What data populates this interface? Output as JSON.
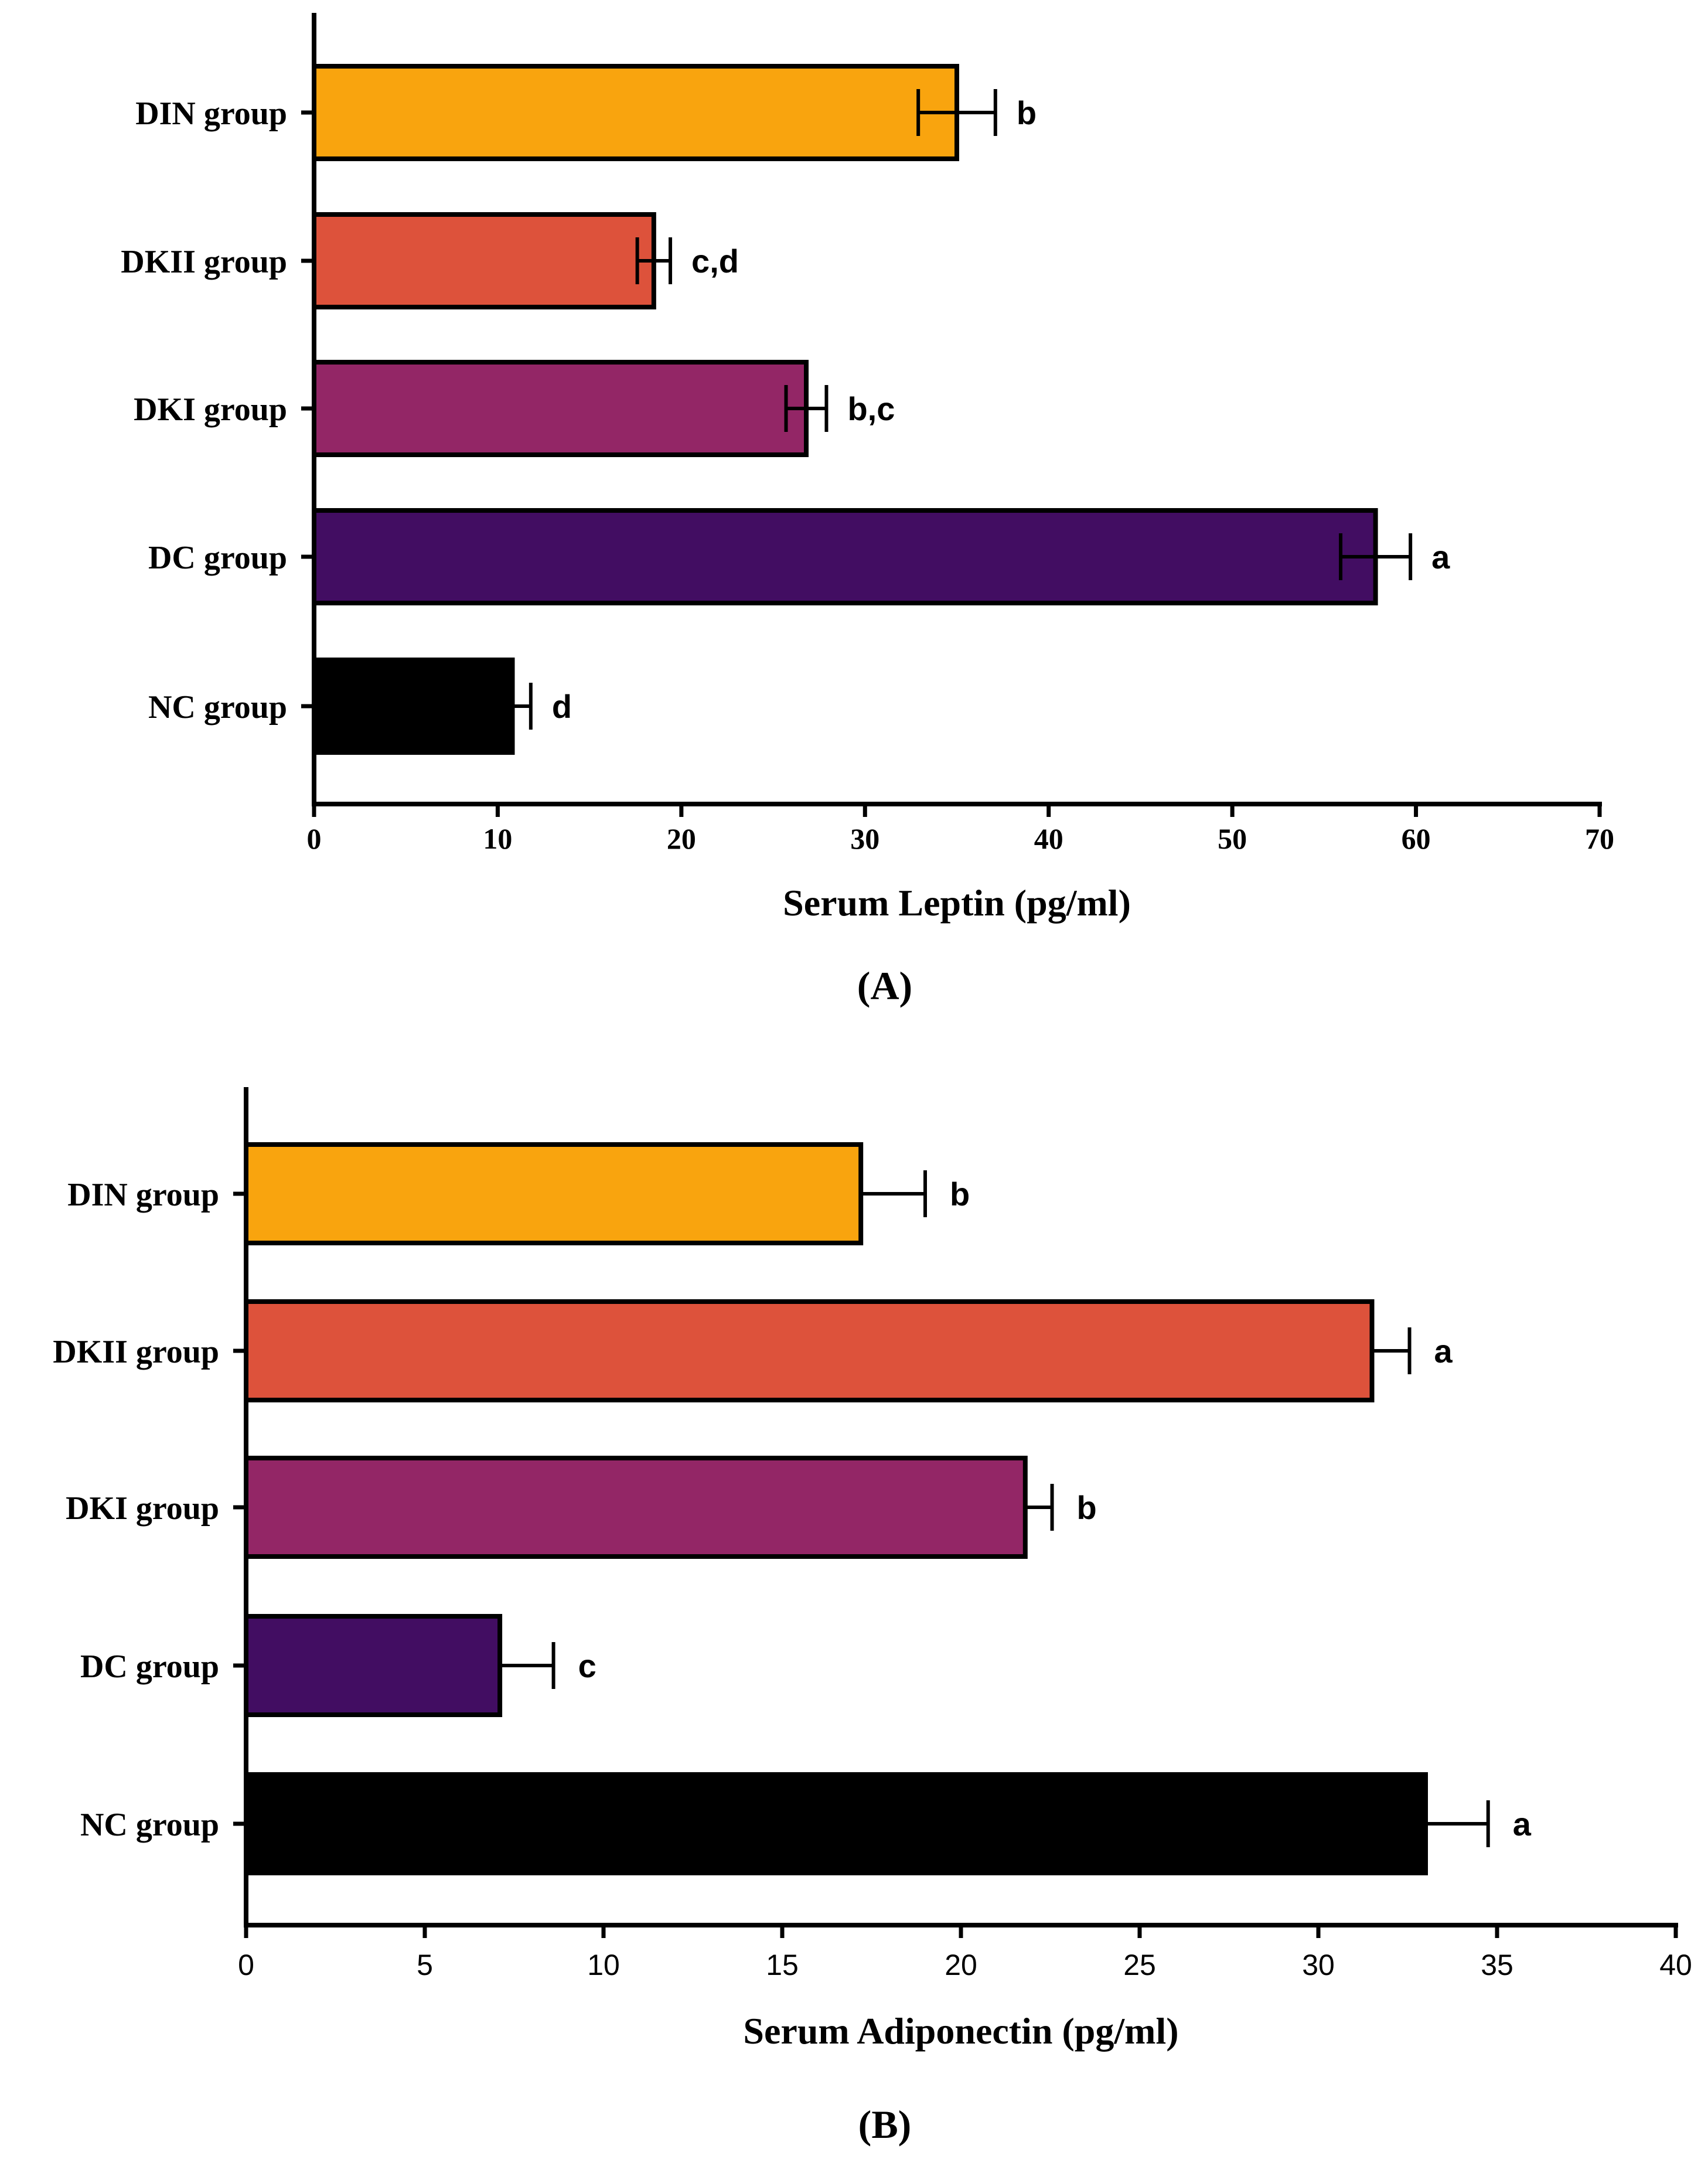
{
  "chart_data": [
    {
      "type": "bar",
      "orientation": "horizontal",
      "panel_label": "(A)",
      "xlabel": "Serum Leptin (pg/ml)",
      "ylabel": "",
      "xlim": [
        0,
        70
      ],
      "ticks": [
        0,
        10,
        20,
        30,
        40,
        50,
        60,
        70
      ],
      "categories": [
        "DIN group",
        "DKII group",
        "DKI group",
        "DC group",
        "NC group"
      ],
      "values": [
        35,
        18.5,
        26.8,
        57.8,
        10.8
      ],
      "errors": [
        2.1,
        0.9,
        1.1,
        1.9,
        1.0
      ],
      "error_style": "both",
      "significance": [
        "b",
        "c,d",
        "b,c",
        "a",
        "d"
      ],
      "colors": [
        "#F9A40E",
        "#DD523B",
        "#932666",
        "#420D62",
        "#000000"
      ]
    },
    {
      "type": "bar",
      "orientation": "horizontal",
      "panel_label": "(B)",
      "xlabel": "Serum Adiponectin (pg/ml)",
      "ylabel": "",
      "xlim": [
        0,
        40
      ],
      "ticks": [
        0,
        5,
        10,
        15,
        20,
        25,
        30,
        35,
        40
      ],
      "categories": [
        "DIN group",
        "DKII group",
        "DKI group",
        "DC group",
        "NC group"
      ],
      "values": [
        17.2,
        31.5,
        21.8,
        7.1,
        33
      ],
      "errors": [
        1.8,
        1.05,
        0.75,
        1.5,
        1.75
      ],
      "error_style": "plus",
      "significance": [
        "b",
        "a",
        "b",
        "c",
        "a"
      ],
      "colors": [
        "#F9A40E",
        "#DD523B",
        "#932666",
        "#420D62",
        "#000000"
      ]
    }
  ]
}
